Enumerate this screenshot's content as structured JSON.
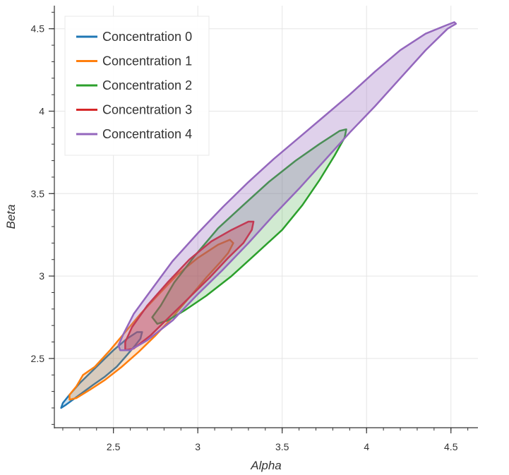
{
  "chart_data": {
    "type": "area",
    "title": "",
    "xlabel": "Alpha",
    "ylabel": "Beta",
    "xlim": [
      2.15,
      4.66
    ],
    "ylim": [
      2.08,
      4.64
    ],
    "xticks": [
      2.5,
      3,
      3.5,
      4,
      4.5
    ],
    "yticks": [
      2.5,
      3,
      3.5,
      4,
      4.5
    ],
    "xtick_labels": [
      "2.5",
      "3",
      "3.5",
      "4",
      "4.5"
    ],
    "ytick_labels": [
      "2.5",
      "3",
      "3.5",
      "4",
      "4.5"
    ],
    "grid": true,
    "legend_position": "top-left",
    "series": [
      {
        "name": "Concentration 0",
        "color": "#1f77b4",
        "fill": "#1f77b4",
        "fill_opacity": 0.22,
        "points": [
          [
            2.19,
            2.2
          ],
          [
            2.22,
            2.22
          ],
          [
            2.3,
            2.28
          ],
          [
            2.38,
            2.34
          ],
          [
            2.45,
            2.39
          ],
          [
            2.52,
            2.45
          ],
          [
            2.58,
            2.52
          ],
          [
            2.63,
            2.58
          ],
          [
            2.66,
            2.62
          ],
          [
            2.67,
            2.66
          ],
          [
            2.64,
            2.66
          ],
          [
            2.58,
            2.62
          ],
          [
            2.5,
            2.55
          ],
          [
            2.44,
            2.49
          ],
          [
            2.37,
            2.42
          ],
          [
            2.3,
            2.35
          ],
          [
            2.24,
            2.28
          ],
          [
            2.2,
            2.23
          ]
        ]
      },
      {
        "name": "Concentration 1",
        "color": "#ff7f0e",
        "fill": "#ff7f0e",
        "fill_opacity": 0.22,
        "points": [
          [
            2.24,
            2.25
          ],
          [
            2.28,
            2.26
          ],
          [
            2.36,
            2.31
          ],
          [
            2.45,
            2.37
          ],
          [
            2.55,
            2.45
          ],
          [
            2.65,
            2.54
          ],
          [
            2.75,
            2.64
          ],
          [
            2.85,
            2.75
          ],
          [
            2.95,
            2.87
          ],
          [
            3.05,
            2.99
          ],
          [
            3.13,
            3.08
          ],
          [
            3.18,
            3.14
          ],
          [
            3.21,
            3.2
          ],
          [
            3.19,
            3.22
          ],
          [
            3.12,
            3.19
          ],
          [
            3.0,
            3.11
          ],
          [
            2.88,
            3.01
          ],
          [
            2.76,
            2.88
          ],
          [
            2.66,
            2.77
          ],
          [
            2.57,
            2.66
          ],
          [
            2.48,
            2.55
          ],
          [
            2.39,
            2.45
          ],
          [
            2.32,
            2.4
          ],
          [
            2.28,
            2.33
          ],
          [
            2.24,
            2.28
          ]
        ]
      },
      {
        "name": "Concentration 2",
        "color": "#2ca02c",
        "fill": "#2ca02c",
        "fill_opacity": 0.22,
        "points": [
          [
            2.76,
            2.71
          ],
          [
            2.82,
            2.73
          ],
          [
            2.92,
            2.79
          ],
          [
            3.05,
            2.88
          ],
          [
            3.2,
            3.0
          ],
          [
            3.35,
            3.14
          ],
          [
            3.5,
            3.28
          ],
          [
            3.62,
            3.43
          ],
          [
            3.72,
            3.58
          ],
          [
            3.81,
            3.73
          ],
          [
            3.87,
            3.84
          ],
          [
            3.88,
            3.89
          ],
          [
            3.84,
            3.88
          ],
          [
            3.72,
            3.8
          ],
          [
            3.58,
            3.7
          ],
          [
            3.42,
            3.57
          ],
          [
            3.27,
            3.43
          ],
          [
            3.12,
            3.29
          ],
          [
            2.98,
            3.12
          ],
          [
            2.86,
            2.96
          ],
          [
            2.78,
            2.82
          ],
          [
            2.73,
            2.75
          ]
        ]
      },
      {
        "name": "Concentration 3",
        "color": "#d62728",
        "fill": "#d62728",
        "fill_opacity": 0.35,
        "points": [
          [
            2.57,
            2.55
          ],
          [
            2.62,
            2.56
          ],
          [
            2.72,
            2.64
          ],
          [
            2.83,
            2.75
          ],
          [
            2.95,
            2.87
          ],
          [
            3.07,
            2.99
          ],
          [
            3.18,
            3.11
          ],
          [
            3.27,
            3.2
          ],
          [
            3.32,
            3.28
          ],
          [
            3.33,
            3.33
          ],
          [
            3.3,
            3.33
          ],
          [
            3.2,
            3.28
          ],
          [
            3.08,
            3.21
          ],
          [
            2.95,
            3.1
          ],
          [
            2.82,
            2.96
          ],
          [
            2.7,
            2.82
          ],
          [
            2.61,
            2.69
          ],
          [
            2.57,
            2.6
          ]
        ]
      },
      {
        "name": "Concentration 4",
        "color": "#9467bd",
        "fill": "#9467bd",
        "fill_opacity": 0.3,
        "points": [
          [
            2.54,
            2.55
          ],
          [
            2.6,
            2.55
          ],
          [
            2.7,
            2.61
          ],
          [
            2.85,
            2.73
          ],
          [
            3.0,
            2.89
          ],
          [
            3.15,
            3.04
          ],
          [
            3.3,
            3.2
          ],
          [
            3.45,
            3.37
          ],
          [
            3.6,
            3.53
          ],
          [
            3.75,
            3.7
          ],
          [
            3.9,
            3.87
          ],
          [
            4.05,
            4.03
          ],
          [
            4.2,
            4.2
          ],
          [
            4.35,
            4.37
          ],
          [
            4.48,
            4.5
          ],
          [
            4.53,
            4.53
          ],
          [
            4.52,
            4.54
          ],
          [
            4.47,
            4.52
          ],
          [
            4.35,
            4.47
          ],
          [
            4.2,
            4.37
          ],
          [
            4.05,
            4.24
          ],
          [
            3.9,
            4.1
          ],
          [
            3.75,
            3.97
          ],
          [
            3.6,
            3.84
          ],
          [
            3.45,
            3.71
          ],
          [
            3.3,
            3.57
          ],
          [
            3.15,
            3.42
          ],
          [
            3.0,
            3.26
          ],
          [
            2.85,
            3.09
          ],
          [
            2.72,
            2.91
          ],
          [
            2.62,
            2.77
          ],
          [
            2.56,
            2.65
          ],
          [
            2.53,
            2.58
          ]
        ]
      }
    ]
  }
}
